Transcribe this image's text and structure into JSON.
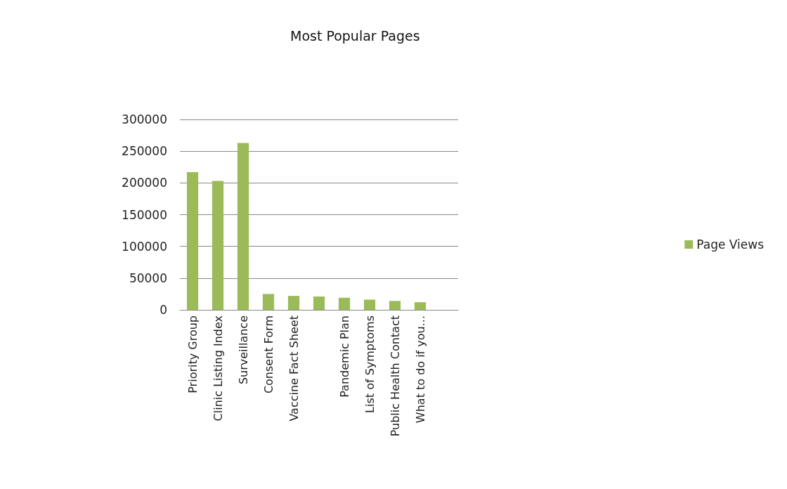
{
  "chart_data": {
    "type": "bar",
    "title": "Most Popular Pages",
    "categories": [
      "Priority Group",
      "Clinic Listing Index",
      "Surveillance",
      "Consent Form",
      "Vaccine Fact Sheet",
      null,
      "Pandemic Plan",
      "List of Symptoms",
      "Public Health Contact",
      "What to do if you...",
      null
    ],
    "series": [
      {
        "name": "Page Views",
        "color": "#9bbb59",
        "values": [
          217000,
          203000,
          263000,
          25000,
          22000,
          21000,
          19000,
          16000,
          14000,
          12000,
          null
        ]
      }
    ],
    "ylim": [
      0,
      300000
    ],
    "yticks": [
      0,
      50000,
      100000,
      150000,
      200000,
      250000,
      300000
    ],
    "grid": "y",
    "legend": "right"
  }
}
